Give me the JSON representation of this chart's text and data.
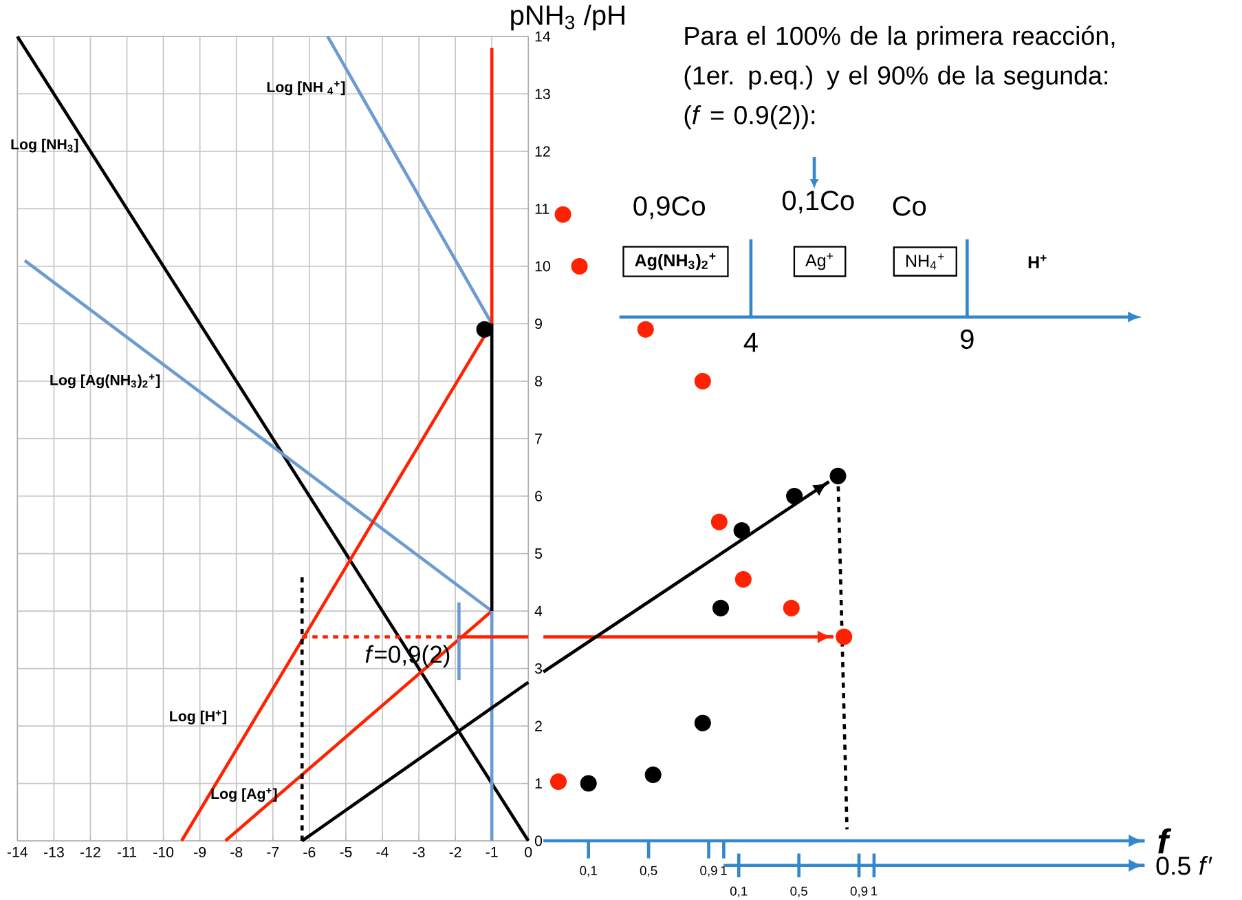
{
  "chart_data": [
    {
      "type": "line",
      "xlim": [
        -14,
        0
      ],
      "ylim": [
        0,
        14
      ],
      "xticks": [
        -14,
        -13,
        -12,
        -11,
        -10,
        -9,
        -8,
        -7,
        -6,
        -5,
        -4,
        -3,
        -2,
        -1,
        0
      ],
      "yticks": [
        0,
        1,
        2,
        3,
        4,
        5,
        6,
        7,
        8,
        9,
        10,
        11,
        12,
        13,
        14
      ],
      "grid": true,
      "ylabel": "pNH$_{3}$ /pH",
      "series": [
        {
          "name": "Log [NH$_{3}$]",
          "color": "#000000",
          "x": [
            -14,
            0
          ],
          "values": [
            14,
            0
          ]
        },
        {
          "name": "Log [NH $_{4}$$^{+}$]",
          "color": "#6b9bd1",
          "x": [
            -5.5,
            -1
          ],
          "values": [
            14,
            9
          ]
        },
        {
          "name": "Log [Ag(NH$_{3}$)$_{2}$$^{+}$]",
          "color": "#6b9bd1",
          "x": [
            -13.8,
            -1
          ],
          "values": [
            10.1,
            4
          ]
        },
        {
          "name": "Log [H$^{+}$]",
          "color": "#ff2200",
          "x": [
            -9.5,
            -1,
            -1
          ],
          "values": [
            0,
            9,
            13.8
          ]
        },
        {
          "name": "Log [Ag$^{+}$]",
          "color": "#ff2200",
          "x": [
            -8.3,
            -1
          ],
          "values": [
            0,
            4
          ]
        },
        {
          "color": "#000000",
          "x": [
            -1,
            -1
          ],
          "values": [
            4,
            9
          ]
        },
        {
          "color": "#6b9bd1",
          "x": [
            -1,
            -1
          ],
          "values": [
            0,
            4
          ]
        },
        {
          "color": "#000000",
          "x": [
            -6.2,
            -6.2
          ],
          "values": [
            0,
            4.6
          ],
          "line_style": "dashed"
        },
        {
          "color": "#6b9bd1",
          "x": [
            -1.9,
            -1.9
          ],
          "values": [
            2.8,
            4.15
          ]
        },
        {
          "type": "scatter",
          "color": "#000000",
          "marker": "circle",
          "x": [
            -1.2
          ],
          "values": [
            8.9
          ]
        },
        {
          "color": "#000000",
          "x": [
            -6.2,
            0
          ],
          "values": [
            0,
            2.76
          ]
        },
        {
          "color": "#ff2200",
          "x": [
            -6.2,
            -1.9
          ],
          "values": [
            3.55,
            3.55
          ],
          "line_style": "dashed"
        },
        {
          "color": "#ff2200",
          "x": [
            -1.9,
            0
          ],
          "values": [
            3.55,
            3.55
          ]
        }
      ],
      "annotations": [
        {
          "text": "*f*=0,9(2)",
          "x": -1.9,
          "y": 3.55
        }
      ]
    },
    {
      "type": "scatter",
      "xlim": [
        -0.2,
        3.8
      ],
      "ylim": [
        0,
        14
      ],
      "tick_labels": "x",
      "xlabel": "f",
      "xticks": [
        {
          "value": 0.1,
          "label": "0,1"
        },
        {
          "value": 0.5,
          "label": "0,5"
        },
        {
          "value": 0.9,
          "label": "0,9"
        },
        1
      ],
      "x2lim": [
        0,
        2.8
      ],
      "x2ticks": [
        {
          "value": 0.1,
          "label": "0,1"
        },
        {
          "value": 0.5,
          "label": "0,5"
        },
        {
          "value": 0.9,
          "label": "0,9"
        },
        1
      ],
      "x2label": "0.5 *f*′",
      "series": [
        {
          "color": "#ff2200",
          "marker": "circle",
          "x": [
            -0.1,
            -0.07,
            0.04,
            0.48,
            0.86,
            0.97,
            1.13,
            1.45,
            1.8
          ],
          "values": [
            1.03,
            10.9,
            10.0,
            8.9,
            8.0,
            5.55,
            4.55,
            4.05,
            3.55
          ]
        },
        {
          "color": "#000000",
          "marker": "circle",
          "x": [
            0.1,
            0.53,
            0.86,
            0.98,
            1.12,
            1.47,
            1.76
          ],
          "values": [
            1.0,
            1.15,
            2.05,
            4.05,
            5.4,
            6.0,
            6.35
          ]
        },
        {
          "type": "line",
          "color": "#000000",
          "line_style": "dashed",
          "marker": "none",
          "x": [
            1.76,
            1.82
          ],
          "values": [
            6.35,
            0.2
          ]
        },
        {
          "type": "line",
          "color": "#ff2200",
          "marker": "none",
          "x": [
            -0.2,
            1.73
          ],
          "values": [
            3.55,
            3.55
          ]
        },
        {
          "type": "line",
          "color": "#000000",
          "marker": "none",
          "x": [
            -0.2,
            1.7
          ],
          "values": [
            2.94,
            6.25
          ]
        }
      ]
    },
    {
      "type": "other",
      "title": "Para el 100%  de la primera reacción, (1er. p.eq.) y el 90% de la segunda: (*f* = 0.9(2)):",
      "annotations": [
        "0,9Co",
        "0,1Co",
        "Co",
        "Ag(NH$_{3}$)$_{2}$$^{+}$",
        "Ag$^{+}$",
        "NH$_{4}$$^{+}$",
        "H$^{+}$",
        "4",
        "9"
      ]
    }
  ]
}
